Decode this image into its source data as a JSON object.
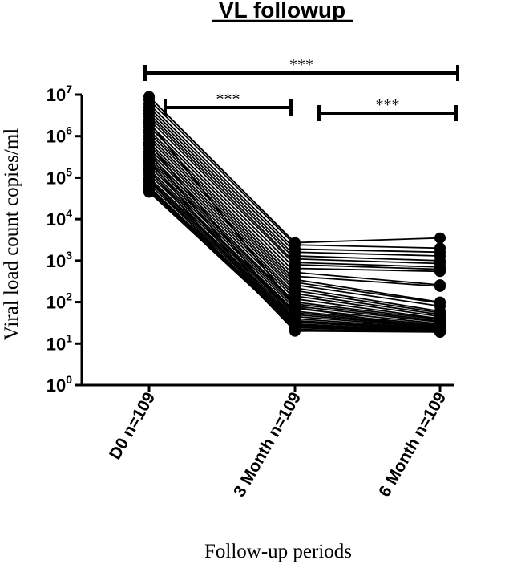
{
  "chart_data": {
    "type": "line",
    "title": "VL followup",
    "xlabel": "Follow-up periods",
    "ylabel": "Viral load count copies/ml",
    "y_scale": "log10",
    "ylim": [
      1,
      10000000
    ],
    "y_ticks": [
      {
        "base": "10",
        "exp": "0"
      },
      {
        "base": "10",
        "exp": "1"
      },
      {
        "base": "10",
        "exp": "2"
      },
      {
        "base": "10",
        "exp": "3"
      },
      {
        "base": "10",
        "exp": "4"
      },
      {
        "base": "10",
        "exp": "5"
      },
      {
        "base": "10",
        "exp": "6"
      },
      {
        "base": "10",
        "exp": "7"
      }
    ],
    "categories": [
      "D0 n=109",
      "3 Month n=109",
      "6 Month n=109"
    ],
    "significance": [
      {
        "from": 0,
        "to": 2,
        "label": "***"
      },
      {
        "from": 0,
        "to": 1,
        "label": "***"
      },
      {
        "from": 1,
        "to": 2,
        "label": "***"
      }
    ],
    "series": [
      {
        "values": [
          9000000,
          2700,
          3500
        ]
      },
      {
        "values": [
          7500000,
          2400,
          2000
        ]
      },
      {
        "values": [
          6000000,
          1900,
          1600
        ]
      },
      {
        "values": [
          5000000,
          1600,
          1300
        ]
      },
      {
        "values": [
          4200000,
          1300,
          1000
        ]
      },
      {
        "values": [
          3500000,
          1100,
          850
        ]
      },
      {
        "values": [
          3000000,
          900,
          700
        ]
      },
      {
        "values": [
          2500000,
          800,
          620
        ]
      },
      {
        "values": [
          2000000,
          650,
          550
        ]
      },
      {
        "values": [
          1700000,
          520,
          260
        ]
      },
      {
        "values": [
          1400000,
          420,
          240
        ]
      },
      {
        "values": [
          1200000,
          350,
          100
        ]
      },
      {
        "values": [
          1000000,
          300,
          95
        ]
      },
      {
        "values": [
          850000,
          260,
          80
        ]
      },
      {
        "values": [
          700000,
          220,
          60
        ]
      },
      {
        "values": [
          600000,
          190,
          55
        ]
      },
      {
        "values": [
          500000,
          160,
          50
        ]
      },
      {
        "values": [
          420000,
          140,
          45
        ]
      },
      {
        "values": [
          350000,
          120,
          40
        ]
      },
      {
        "values": [
          300000,
          100,
          38
        ]
      },
      {
        "values": [
          260000,
          90,
          35
        ]
      },
      {
        "values": [
          220000,
          80,
          33
        ]
      },
      {
        "values": [
          190000,
          70,
          30
        ]
      },
      {
        "values": [
          160000,
          60,
          28
        ]
      },
      {
        "values": [
          140000,
          55,
          26
        ]
      },
      {
        "values": [
          120000,
          50,
          25
        ]
      },
      {
        "values": [
          100000,
          45,
          24
        ]
      },
      {
        "values": [
          90000,
          40,
          23
        ]
      },
      {
        "values": [
          80000,
          36,
          22
        ]
      },
      {
        "values": [
          70000,
          33,
          21
        ]
      },
      {
        "values": [
          60000,
          30,
          20
        ]
      },
      {
        "values": [
          55000,
          28,
          20
        ]
      },
      {
        "values": [
          50000,
          26,
          20
        ]
      },
      {
        "values": [
          45000,
          25,
          19
        ]
      },
      {
        "values": [
          400000,
          24,
          20
        ]
      },
      {
        "values": [
          250000,
          22,
          19
        ]
      },
      {
        "values": [
          150000,
          21,
          20
        ]
      },
      {
        "values": [
          85000,
          20,
          19
        ]
      },
      {
        "values": [
          2200000,
          75,
          22
        ]
      },
      {
        "values": [
          650000,
          35,
          21
        ]
      }
    ]
  }
}
